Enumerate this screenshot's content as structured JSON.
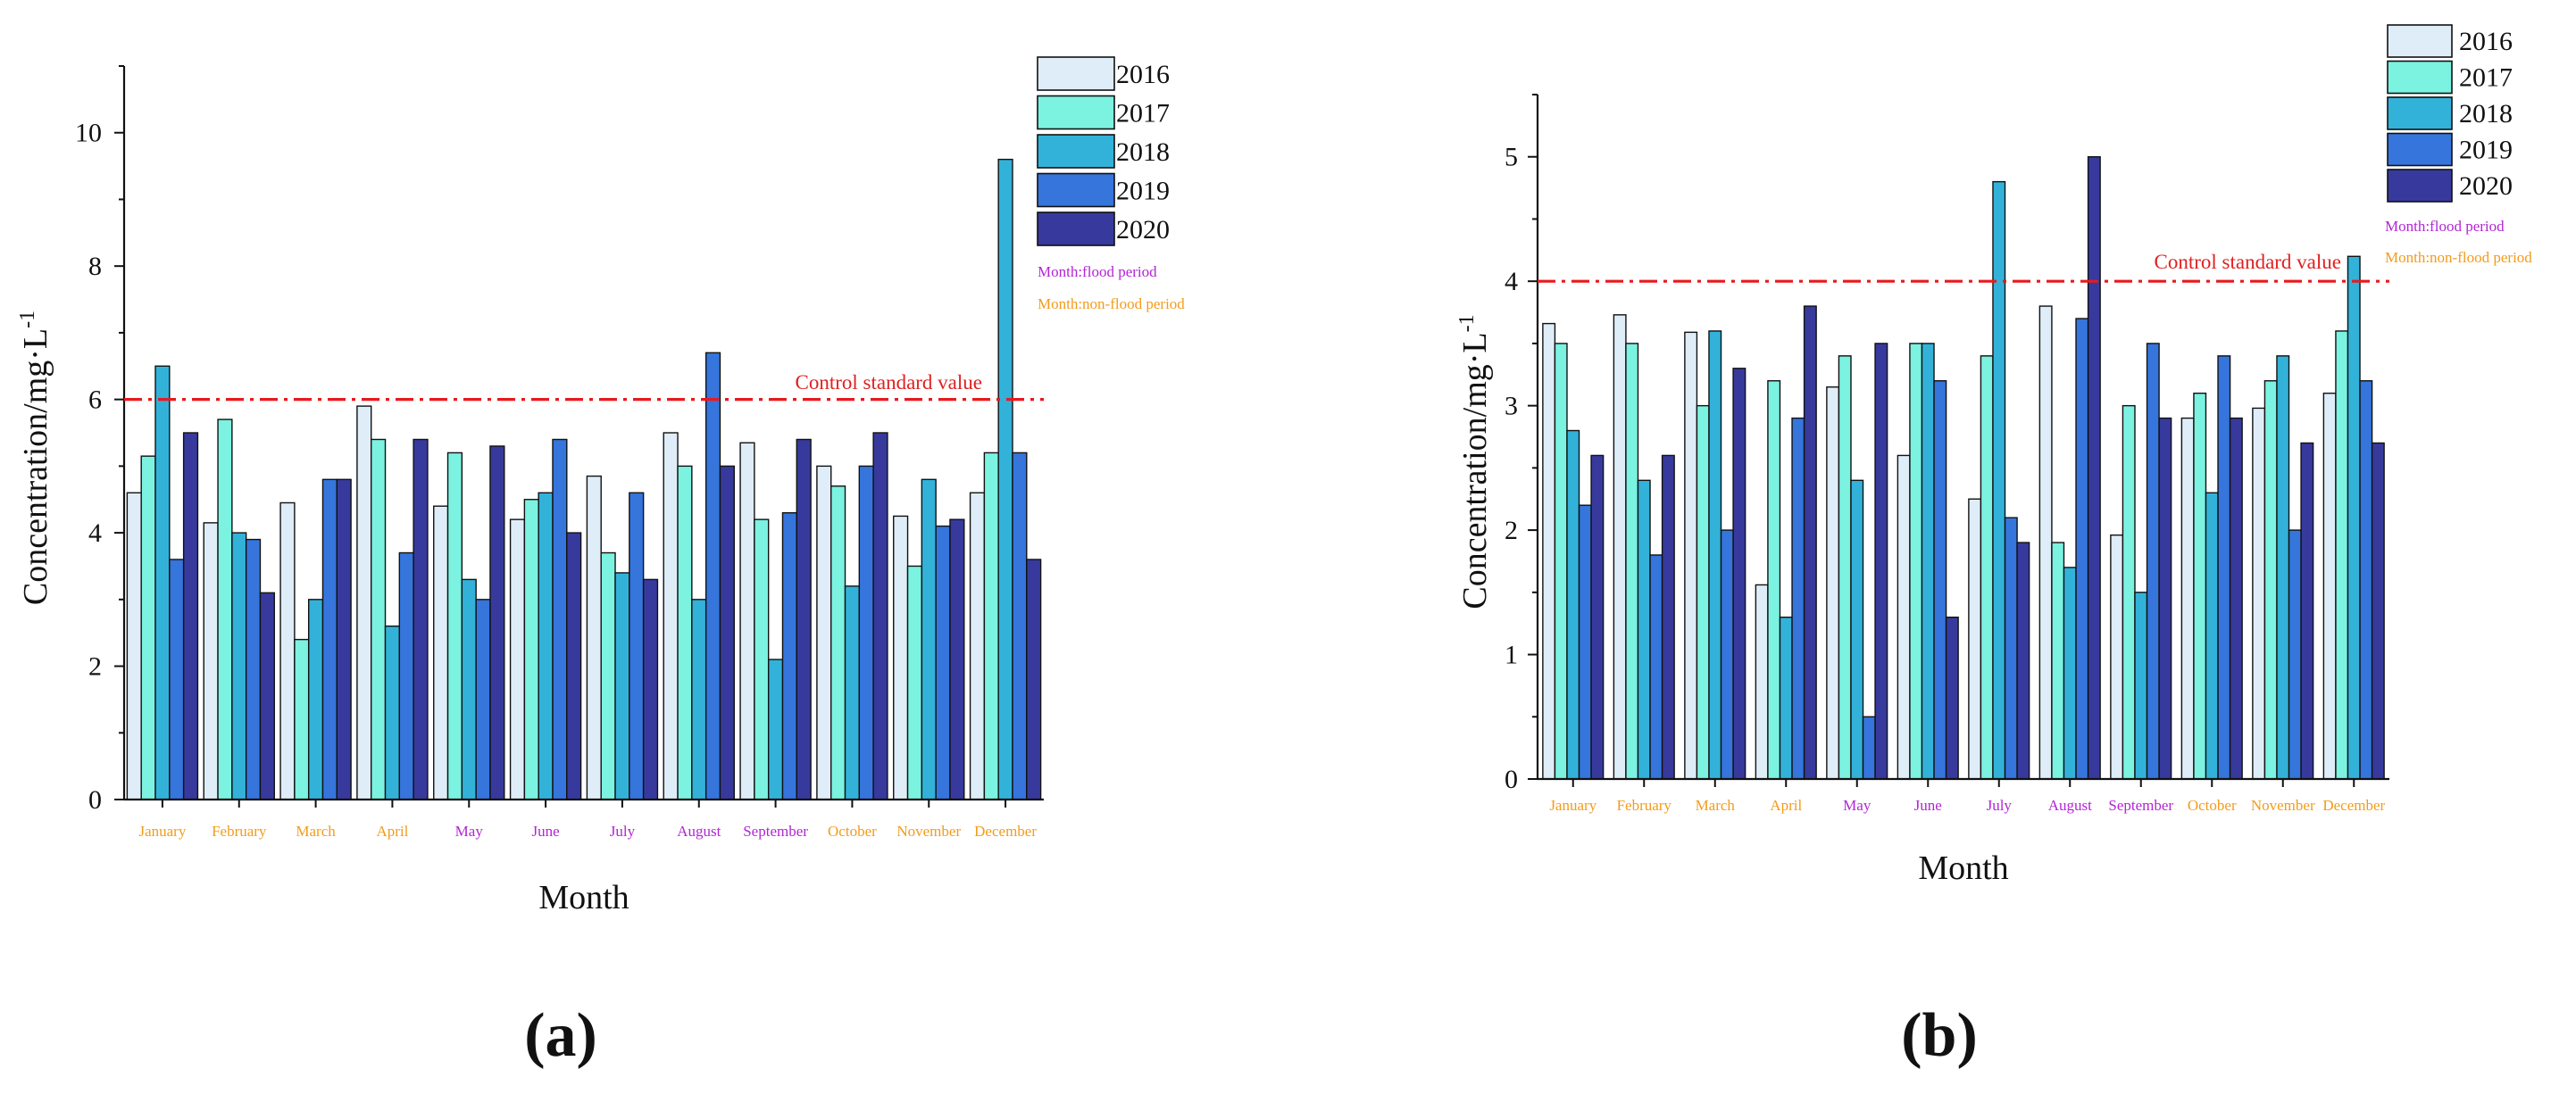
{
  "colors": {
    "series": [
      "#deedf7",
      "#7cf2e1",
      "#33b2d9",
      "#3575dc",
      "#373a9c"
    ],
    "flood": "#b323d6",
    "non_flood": "#f39b1a",
    "control": "#e8191e",
    "axis": "#111111"
  },
  "chart_data": [
    {
      "type": "bar",
      "panel_label": "(a)",
      "xlabel": "Month",
      "ylabel": "Concentration/mg·L",
      "ylabel_sup": "-1",
      "ylim": [
        0,
        11
      ],
      "major_ticks": [
        0,
        2,
        4,
        6,
        8,
        10
      ],
      "tick_labels": [
        "0",
        "2",
        "4",
        "6",
        "8",
        "10"
      ],
      "categories": [
        "January",
        "February",
        "March",
        "April",
        "May",
        "June",
        "July",
        "August",
        "September",
        "October",
        "November",
        "December"
      ],
      "period": [
        "non-flood",
        "non-flood",
        "non-flood",
        "non-flood",
        "flood",
        "flood",
        "flood",
        "flood",
        "flood",
        "non-flood",
        "non-flood",
        "non-flood"
      ],
      "series": [
        {
          "name": "2016",
          "values": [
            4.6,
            4.15,
            4.45,
            5.9,
            4.4,
            4.2,
            4.85,
            5.5,
            5.35,
            5.0,
            4.25,
            4.6
          ]
        },
        {
          "name": "2017",
          "values": [
            5.15,
            5.7,
            2.4,
            5.4,
            5.2,
            4.5,
            3.7,
            5.0,
            4.2,
            4.7,
            3.5,
            5.2
          ]
        },
        {
          "name": "2018",
          "values": [
            6.5,
            4.0,
            3.0,
            2.6,
            3.3,
            4.6,
            3.4,
            3.0,
            2.1,
            3.2,
            4.8,
            9.6
          ]
        },
        {
          "name": "2019",
          "values": [
            3.6,
            3.9,
            4.8,
            3.7,
            3.0,
            5.4,
            4.6,
            6.7,
            4.3,
            5.0,
            4.1,
            5.2
          ]
        },
        {
          "name": "2020",
          "values": [
            5.5,
            3.1,
            4.8,
            5.4,
            5.3,
            4.0,
            3.3,
            5.0,
            5.4,
            5.5,
            4.2,
            3.6
          ]
        }
      ],
      "control_value": 6,
      "control_label": "Control standard value",
      "legend_notes": {
        "flood": "Month:flood period",
        "non_flood": "Month:non-flood period"
      }
    },
    {
      "type": "bar",
      "panel_label": "(b)",
      "xlabel": "Month",
      "ylabel": "Concentration/mg·L",
      "ylabel_sup": "-1",
      "ylim": [
        0,
        5.5
      ],
      "major_ticks": [
        0,
        1,
        2,
        3,
        4,
        5
      ],
      "tick_labels": [
        "0",
        "1",
        "2",
        "3",
        "4",
        "5"
      ],
      "categories": [
        "January",
        "February",
        "March",
        "April",
        "May",
        "June",
        "July",
        "August",
        "September",
        "October",
        "November",
        "December"
      ],
      "period": [
        "non-flood",
        "non-flood",
        "non-flood",
        "non-flood",
        "flood",
        "flood",
        "flood",
        "flood",
        "flood",
        "non-flood",
        "non-flood",
        "non-flood"
      ],
      "series": [
        {
          "name": "2016",
          "values": [
            3.66,
            3.73,
            3.59,
            1.56,
            3.15,
            2.6,
            2.25,
            3.8,
            1.96,
            2.9,
            2.98,
            3.1
          ]
        },
        {
          "name": "2017",
          "values": [
            3.5,
            3.5,
            3.0,
            3.2,
            3.4,
            3.5,
            3.4,
            1.9,
            3.0,
            3.1,
            3.2,
            3.6
          ]
        },
        {
          "name": "2018",
          "values": [
            2.8,
            2.4,
            3.6,
            1.3,
            2.4,
            3.5,
            4.8,
            1.7,
            1.5,
            2.3,
            3.4,
            4.2
          ]
        },
        {
          "name": "2019",
          "values": [
            2.2,
            1.8,
            2.0,
            2.9,
            0.5,
            3.2,
            2.1,
            3.7,
            3.5,
            3.4,
            2.0,
            3.2
          ]
        },
        {
          "name": "2020",
          "values": [
            2.6,
            2.6,
            3.3,
            3.8,
            3.5,
            1.3,
            1.9,
            5.0,
            2.9,
            2.9,
            2.7,
            2.7
          ]
        }
      ],
      "control_value": 4,
      "control_label": "Control standard value",
      "legend_notes": {
        "flood": "Month:flood period",
        "non_flood": "Month:non-flood period"
      }
    }
  ]
}
